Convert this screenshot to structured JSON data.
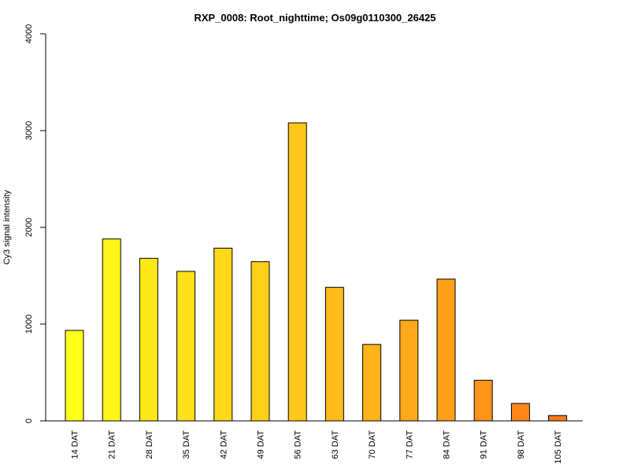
{
  "chart_data": {
    "type": "bar",
    "title": "RXP_0008: Root_nighttime; Os09g0110300_26425",
    "xlabel": "",
    "ylabel": "Cy3 signal intensity",
    "ylim": [
      0,
      4000
    ],
    "yticks": [
      0,
      1000,
      2000,
      3000,
      4000
    ],
    "grid": false,
    "categories": [
      "14 DAT",
      "21 DAT",
      "28 DAT",
      "35 DAT",
      "42 DAT",
      "49 DAT",
      "56 DAT",
      "63 DAT",
      "70 DAT",
      "77 DAT",
      "84 DAT",
      "91 DAT",
      "98 DAT",
      "105 DAT"
    ],
    "values": [
      935,
      1880,
      1680,
      1545,
      1785,
      1645,
      3080,
      1380,
      790,
      1040,
      1465,
      420,
      180,
      55
    ],
    "colors": [
      "#FFFF1A",
      "#FFF41A",
      "#FFE81A",
      "#FFE01A",
      "#FFD81A",
      "#FFD01A",
      "#FFC71A",
      "#FFBC1A",
      "#FFB31A",
      "#FFA91A",
      "#FF9F1A",
      "#FF931A",
      "#FF871A",
      "#FF7A1A"
    ]
  }
}
